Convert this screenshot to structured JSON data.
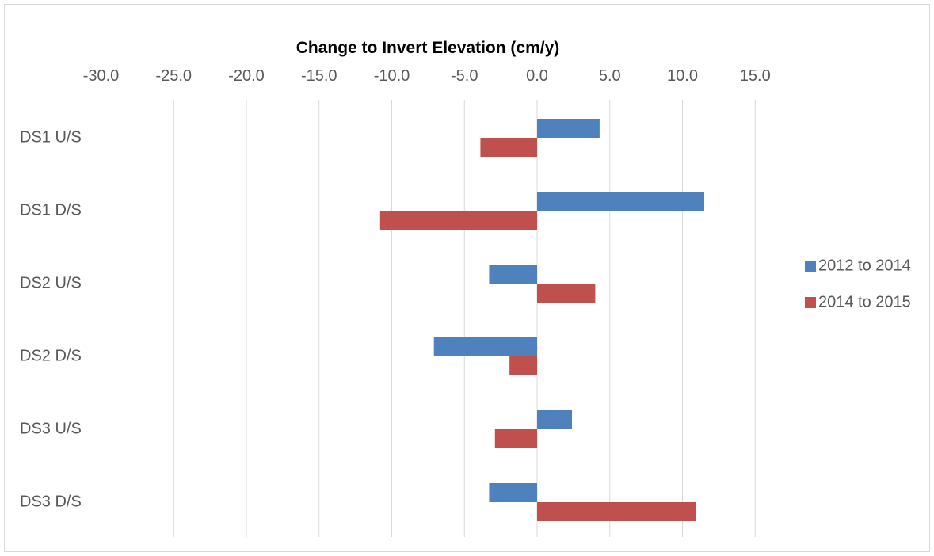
{
  "chart_data": {
    "type": "bar",
    "orientation": "horizontal",
    "title": "Change to Invert Elevation (cm/y)",
    "xlabel": "",
    "ylabel": "",
    "x_axis_position": "top",
    "xlim": [
      -30,
      15
    ],
    "x_ticks": [
      -30,
      -25,
      -20,
      -15,
      -10,
      -5,
      0,
      5,
      10,
      15
    ],
    "x_tick_labels": [
      "-30.0",
      "-25.0",
      "-20.0",
      "-15.0",
      "-10.0",
      "-5.0",
      "0.0",
      "5.0",
      "10.0",
      "15.0"
    ],
    "categories": [
      "DS1 U/S",
      "DS1 D/S",
      "DS2 U/S",
      "DS2 D/S",
      "DS3 U/S",
      "DS3 D/S"
    ],
    "series": [
      {
        "name": "2012 to 2014",
        "color": "#4f81bd",
        "values": [
          4.3,
          11.5,
          -3.3,
          -7.1,
          2.4,
          -3.3
        ]
      },
      {
        "name": "2014 to 2015",
        "color": "#c0504d",
        "values": [
          -3.9,
          -10.8,
          4.0,
          -1.9,
          -2.9,
          10.9
        ]
      }
    ],
    "grid": "vertical",
    "legend_position": "right"
  }
}
